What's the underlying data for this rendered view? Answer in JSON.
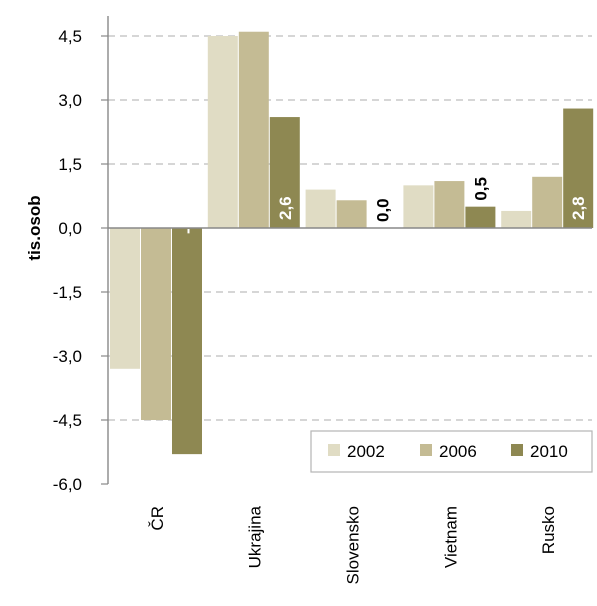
{
  "chart_data": {
    "type": "bar",
    "title": "",
    "xlabel": "",
    "ylabel": "tis.osob",
    "ylim": [
      -6.0,
      4.5
    ],
    "y_ticks": [
      "4,5",
      "3,0",
      "1,5",
      "0,0",
      "-1,5",
      "-3,0",
      "-4,5",
      "-6,0"
    ],
    "categories": [
      "ČR",
      "Ukrajina",
      "Slovensko",
      "Vietnam",
      "Rusko"
    ],
    "series": [
      {
        "name": "2002",
        "color": "#e0dcc4",
        "values": [
          -3.3,
          4.5,
          0.9,
          1.0,
          0.4
        ]
      },
      {
        "name": "2006",
        "color": "#c4bb94",
        "values": [
          -4.5,
          4.6,
          0.65,
          1.1,
          1.2
        ]
      },
      {
        "name": "2010",
        "color": "#8e8852",
        "values": [
          -5.3,
          2.6,
          0.0,
          0.5,
          2.8
        ]
      }
    ],
    "data_labels": {
      "series": "2010",
      "labels": [
        "-5,3",
        "2,6",
        "0,0",
        "0,5",
        "2,8"
      ]
    },
    "grid": "horizontal-dashed",
    "legend_position": "bottom-right"
  }
}
